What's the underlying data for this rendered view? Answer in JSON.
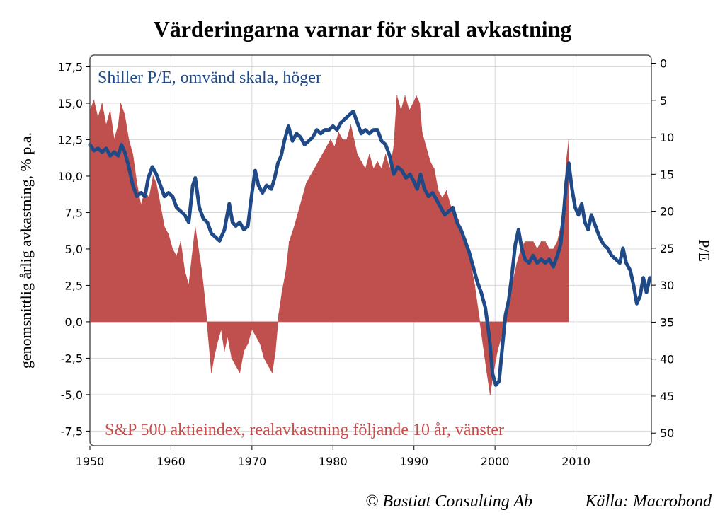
{
  "chart_data": {
    "type": "area",
    "title": "Värderingarna varnar för skral avkastning",
    "ylabel_left": "genomsnittlig årlig avkastning, % p.a.",
    "ylabel_right": "P/E",
    "xlim": [
      1950,
      2019.3
    ],
    "ylim_left": [
      -8.5,
      18.3
    ],
    "ylim_right_inverted": [
      -1.1,
      51.7
    ],
    "x_ticks": [
      "1950",
      "1960",
      "1970",
      "1980",
      "1990",
      "2000",
      "2010"
    ],
    "x_tick_values": [
      1950,
      1960,
      1970,
      1980,
      1990,
      2000,
      2010
    ],
    "y_left_ticks": [
      "17,5",
      "15,0",
      "12,5",
      "10,0",
      "7,5",
      "5,0",
      "2,5",
      "0,0",
      "-2,5",
      "-5,0",
      "-7,5"
    ],
    "y_left_tick_values": [
      17.5,
      15,
      12.5,
      10,
      7.5,
      5,
      2.5,
      0,
      -2.5,
      -5,
      -7.5
    ],
    "y_right_ticks": [
      "0",
      "5",
      "10",
      "15",
      "20",
      "25",
      "30",
      "35",
      "40",
      "45",
      "50"
    ],
    "y_right_tick_values": [
      0,
      5,
      10,
      15,
      20,
      25,
      30,
      35,
      40,
      45,
      50
    ],
    "grid": true,
    "series": [
      {
        "name": "S&P 500 aktieindex, realavkastning följande 10 år, vänster",
        "axis": "left",
        "color": "#c0504d",
        "points": [
          [
            1950.0,
            14.5
          ],
          [
            1950.5,
            15.2
          ],
          [
            1951.0,
            14.0
          ],
          [
            1951.5,
            15.0
          ],
          [
            1952.0,
            13.5
          ],
          [
            1952.5,
            14.5
          ],
          [
            1953.0,
            12.5
          ],
          [
            1953.5,
            13.5
          ],
          [
            1953.8,
            15.0
          ],
          [
            1954.3,
            14.2
          ],
          [
            1954.8,
            12.5
          ],
          [
            1955.3,
            11.5
          ],
          [
            1955.8,
            9.5
          ],
          [
            1956.3,
            8.0
          ],
          [
            1956.8,
            9.0
          ],
          [
            1957.3,
            8.5
          ],
          [
            1957.8,
            10.0
          ],
          [
            1958.2,
            9.5
          ],
          [
            1958.7,
            8.0
          ],
          [
            1959.2,
            6.5
          ],
          [
            1959.7,
            6.0
          ],
          [
            1960.2,
            5.0
          ],
          [
            1960.7,
            4.5
          ],
          [
            1961.2,
            5.5
          ],
          [
            1961.7,
            3.5
          ],
          [
            1962.2,
            2.5
          ],
          [
            1962.6,
            4.5
          ],
          [
            1963.0,
            6.5
          ],
          [
            1963.4,
            5.0
          ],
          [
            1963.8,
            3.5
          ],
          [
            1964.2,
            1.5
          ],
          [
            1964.6,
            -1.0
          ],
          [
            1965.0,
            -3.5
          ],
          [
            1965.3,
            -2.5
          ],
          [
            1965.7,
            -1.5
          ],
          [
            1966.2,
            -0.5
          ],
          [
            1966.6,
            -2.0
          ],
          [
            1967.0,
            -1.0
          ],
          [
            1967.5,
            -2.5
          ],
          [
            1968.0,
            -3.0
          ],
          [
            1968.5,
            -3.5
          ],
          [
            1969.0,
            -2.0
          ],
          [
            1969.5,
            -1.5
          ],
          [
            1970.0,
            -0.5
          ],
          [
            1970.5,
            -1.0
          ],
          [
            1971.0,
            -1.5
          ],
          [
            1971.5,
            -2.5
          ],
          [
            1972.0,
            -3.0
          ],
          [
            1972.5,
            -3.5
          ],
          [
            1972.9,
            -2.0
          ],
          [
            1973.3,
            0.5
          ],
          [
            1973.7,
            2.0
          ],
          [
            1974.2,
            3.5
          ],
          [
            1974.6,
            5.5
          ],
          [
            1975.2,
            6.5
          ],
          [
            1975.7,
            7.5
          ],
          [
            1976.2,
            8.5
          ],
          [
            1976.7,
            9.5
          ],
          [
            1977.2,
            10.0
          ],
          [
            1977.7,
            10.5
          ],
          [
            1978.2,
            11.0
          ],
          [
            1978.7,
            11.5
          ],
          [
            1979.2,
            12.0
          ],
          [
            1979.7,
            12.5
          ],
          [
            1980.2,
            12.0
          ],
          [
            1980.7,
            13.0
          ],
          [
            1981.2,
            12.5
          ],
          [
            1981.7,
            12.5
          ],
          [
            1982.2,
            13.5
          ],
          [
            1982.6,
            12.5
          ],
          [
            1983.0,
            11.5
          ],
          [
            1983.5,
            11.0
          ],
          [
            1984.0,
            10.5
          ],
          [
            1984.5,
            11.5
          ],
          [
            1985.0,
            10.5
          ],
          [
            1985.5,
            11.0
          ],
          [
            1986.0,
            10.5
          ],
          [
            1986.5,
            11.5
          ],
          [
            1987.0,
            10.5
          ],
          [
            1987.5,
            12.0
          ],
          [
            1987.9,
            15.5
          ],
          [
            1988.4,
            14.5
          ],
          [
            1988.9,
            15.5
          ],
          [
            1989.4,
            14.5
          ],
          [
            1989.9,
            15.0
          ],
          [
            1990.3,
            15.5
          ],
          [
            1990.7,
            15.0
          ],
          [
            1991.0,
            13.0
          ],
          [
            1991.5,
            12.0
          ],
          [
            1992.0,
            11.0
          ],
          [
            1992.5,
            10.5
          ],
          [
            1993.0,
            9.0
          ],
          [
            1993.5,
            8.5
          ],
          [
            1994.0,
            9.0
          ],
          [
            1994.5,
            8.0
          ],
          [
            1995.0,
            7.5
          ],
          [
            1995.5,
            7.0
          ],
          [
            1996.0,
            6.0
          ],
          [
            1996.5,
            5.0
          ],
          [
            1997.0,
            4.0
          ],
          [
            1997.5,
            2.5
          ],
          [
            1998.0,
            0.5
          ],
          [
            1998.5,
            -1.5
          ],
          [
            1999.0,
            -3.5
          ],
          [
            1999.4,
            -5.0
          ],
          [
            1999.8,
            -3.5
          ],
          [
            2000.3,
            -2.0
          ],
          [
            2000.8,
            -1.0
          ],
          [
            2001.3,
            0.5
          ],
          [
            2001.8,
            1.5
          ],
          [
            2002.3,
            3.0
          ],
          [
            2002.7,
            4.0
          ],
          [
            2003.2,
            5.0
          ],
          [
            2003.7,
            5.5
          ],
          [
            2004.2,
            5.5
          ],
          [
            2004.7,
            5.5
          ],
          [
            2005.2,
            5.0
          ],
          [
            2005.7,
            5.5
          ],
          [
            2006.2,
            5.5
          ],
          [
            2006.7,
            5.0
          ],
          [
            2007.2,
            5.0
          ],
          [
            2007.7,
            5.5
          ],
          [
            2008.1,
            6.5
          ],
          [
            2008.5,
            8.0
          ],
          [
            2008.8,
            11.0
          ],
          [
            2009.1,
            12.5
          ]
        ]
      },
      {
        "name": "Shiller P/E, omvänd skala, höger",
        "axis": "right",
        "color": "#1f4a87",
        "points": [
          [
            1950.0,
            11.0
          ],
          [
            1950.5,
            11.8
          ],
          [
            1951.0,
            11.5
          ],
          [
            1951.5,
            12.0
          ],
          [
            1952.0,
            11.5
          ],
          [
            1952.5,
            12.5
          ],
          [
            1953.0,
            12.0
          ],
          [
            1953.5,
            12.5
          ],
          [
            1953.9,
            11.0
          ],
          [
            1954.3,
            12.0
          ],
          [
            1954.8,
            14.0
          ],
          [
            1955.3,
            16.5
          ],
          [
            1955.8,
            18.0
          ],
          [
            1956.3,
            17.5
          ],
          [
            1956.8,
            18.0
          ],
          [
            1957.2,
            15.5
          ],
          [
            1957.7,
            14.0
          ],
          [
            1958.2,
            15.0
          ],
          [
            1958.7,
            16.5
          ],
          [
            1959.2,
            18.0
          ],
          [
            1959.7,
            17.5
          ],
          [
            1960.2,
            18.0
          ],
          [
            1960.7,
            19.5
          ],
          [
            1961.2,
            20.0
          ],
          [
            1961.7,
            20.5
          ],
          [
            1962.2,
            21.5
          ],
          [
            1962.7,
            16.5
          ],
          [
            1963.0,
            15.5
          ],
          [
            1963.5,
            19.5
          ],
          [
            1964.0,
            21.0
          ],
          [
            1964.5,
            21.5
          ],
          [
            1965.0,
            23.0
          ],
          [
            1965.5,
            23.5
          ],
          [
            1966.0,
            24.0
          ],
          [
            1966.6,
            22.5
          ],
          [
            1967.2,
            19.0
          ],
          [
            1967.6,
            21.5
          ],
          [
            1968.0,
            22.0
          ],
          [
            1968.5,
            21.5
          ],
          [
            1969.0,
            22.5
          ],
          [
            1969.5,
            22.0
          ],
          [
            1970.0,
            17.5
          ],
          [
            1970.4,
            14.5
          ],
          [
            1970.8,
            16.5
          ],
          [
            1971.3,
            17.5
          ],
          [
            1971.8,
            16.5
          ],
          [
            1972.4,
            17.0
          ],
          [
            1972.8,
            15.5
          ],
          [
            1973.2,
            13.5
          ],
          [
            1973.6,
            12.5
          ],
          [
            1974.0,
            10.5
          ],
          [
            1974.5,
            8.5
          ],
          [
            1975.0,
            10.5
          ],
          [
            1975.5,
            9.5
          ],
          [
            1976.0,
            10.0
          ],
          [
            1976.5,
            11.0
          ],
          [
            1977.0,
            10.5
          ],
          [
            1977.5,
            10.0
          ],
          [
            1978.0,
            9.0
          ],
          [
            1978.5,
            9.5
          ],
          [
            1979.0,
            9.0
          ],
          [
            1979.5,
            9.0
          ],
          [
            1980.0,
            8.5
          ],
          [
            1980.5,
            9.0
          ],
          [
            1981.0,
            8.0
          ],
          [
            1981.5,
            7.5
          ],
          [
            1982.0,
            7.0
          ],
          [
            1982.5,
            6.5
          ],
          [
            1983.0,
            8.0
          ],
          [
            1983.5,
            9.5
          ],
          [
            1984.0,
            9.0
          ],
          [
            1984.5,
            9.5
          ],
          [
            1985.0,
            9.0
          ],
          [
            1985.5,
            9.0
          ],
          [
            1986.0,
            10.5
          ],
          [
            1986.5,
            11.0
          ],
          [
            1987.0,
            12.5
          ],
          [
            1987.5,
            15.0
          ],
          [
            1988.0,
            14.0
          ],
          [
            1988.5,
            14.5
          ],
          [
            1989.0,
            15.5
          ],
          [
            1989.5,
            15.0
          ],
          [
            1990.0,
            16.0
          ],
          [
            1990.4,
            17.0
          ],
          [
            1990.8,
            15.0
          ],
          [
            1991.3,
            17.0
          ],
          [
            1991.8,
            18.0
          ],
          [
            1992.3,
            17.5
          ],
          [
            1992.8,
            18.5
          ],
          [
            1993.3,
            19.5
          ],
          [
            1993.8,
            20.5
          ],
          [
            1994.3,
            20.0
          ],
          [
            1994.8,
            19.5
          ],
          [
            1995.3,
            21.5
          ],
          [
            1995.8,
            22.5
          ],
          [
            1996.3,
            24.0
          ],
          [
            1996.8,
            25.5
          ],
          [
            1997.3,
            27.5
          ],
          [
            1997.8,
            29.5
          ],
          [
            1998.3,
            31.0
          ],
          [
            1998.8,
            33.0
          ],
          [
            1999.3,
            37.0
          ],
          [
            1999.7,
            42.0
          ],
          [
            2000.1,
            43.5
          ],
          [
            2000.5,
            43.0
          ],
          [
            2000.9,
            38.5
          ],
          [
            2001.3,
            34.0
          ],
          [
            2001.7,
            32.0
          ],
          [
            2002.1,
            28.5
          ],
          [
            2002.5,
            24.5
          ],
          [
            2002.9,
            22.5
          ],
          [
            2003.3,
            25.0
          ],
          [
            2003.7,
            26.5
          ],
          [
            2004.2,
            27.0
          ],
          [
            2004.7,
            26.0
          ],
          [
            2005.2,
            27.0
          ],
          [
            2005.7,
            26.5
          ],
          [
            2006.2,
            27.0
          ],
          [
            2006.7,
            26.5
          ],
          [
            2007.2,
            27.5
          ],
          [
            2007.7,
            26.0
          ],
          [
            2008.1,
            24.5
          ],
          [
            2008.5,
            20.0
          ],
          [
            2008.8,
            16.0
          ],
          [
            2009.1,
            13.5
          ],
          [
            2009.5,
            17.0
          ],
          [
            2009.9,
            19.5
          ],
          [
            2010.3,
            20.5
          ],
          [
            2010.7,
            19.0
          ],
          [
            2011.1,
            21.5
          ],
          [
            2011.5,
            22.5
          ],
          [
            2011.9,
            20.5
          ],
          [
            2012.4,
            22.0
          ],
          [
            2012.9,
            23.5
          ],
          [
            2013.4,
            24.5
          ],
          [
            2013.9,
            25.0
          ],
          [
            2014.4,
            26.0
          ],
          [
            2014.9,
            26.5
          ],
          [
            2015.4,
            27.0
          ],
          [
            2015.8,
            25.0
          ],
          [
            2016.2,
            27.0
          ],
          [
            2016.7,
            28.0
          ],
          [
            2017.1,
            30.0
          ],
          [
            2017.5,
            32.5
          ],
          [
            2017.9,
            31.5
          ],
          [
            2018.3,
            29.0
          ],
          [
            2018.7,
            31.0
          ],
          [
            2019.1,
            29.0
          ]
        ]
      }
    ]
  },
  "annotations": {
    "blue_label": "Shiller P/E, omvänd skala, höger",
    "red_label": "S&P 500 aktieindex, realavkastning följande 10 år, vänster"
  },
  "credit": {
    "left": "© Bastiat Consulting Ab",
    "right": "Källa: Macrobond"
  },
  "colors": {
    "return_area": "#c0504d",
    "pe_line": "#1f4a87",
    "grid": "#d9d9d9",
    "frame": "#555555"
  }
}
